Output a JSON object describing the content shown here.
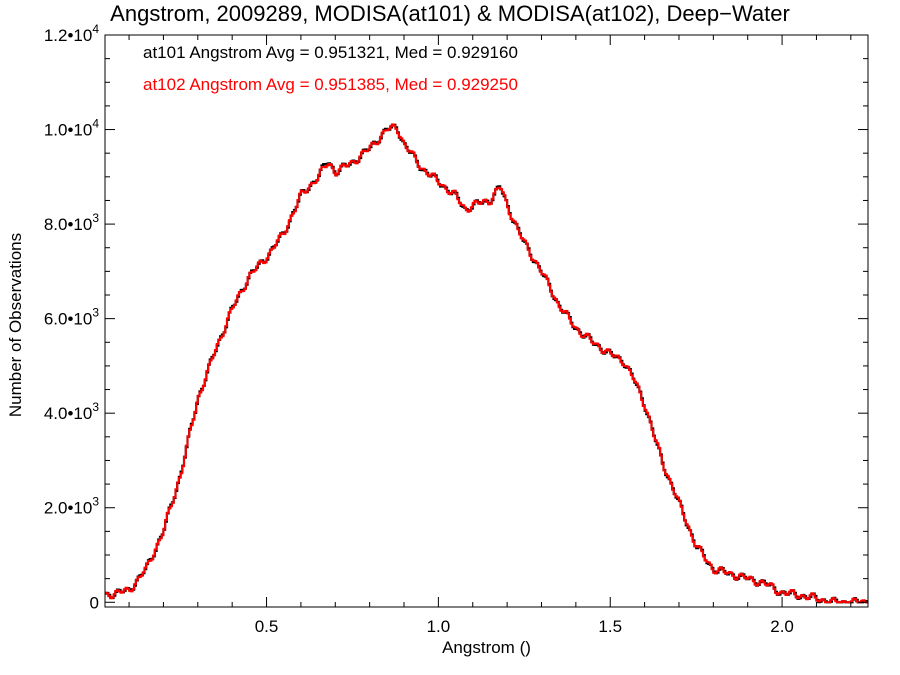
{
  "chart_data": {
    "type": "step-histogram",
    "title": "Angstrom, 2009289, MODISA(at101) & MODISA(at102), Deep−Water",
    "xlabel": "Angstrom ()",
    "ylabel": "Number of Observations",
    "xlim": [
      0.03,
      2.25
    ],
    "ylim": [
      -100,
      12000
    ],
    "x_ticks": [
      0.5,
      1.0,
      1.5,
      2.0
    ],
    "x_tick_labels": [
      "0.5",
      "1.0",
      "1.5",
      "2.0"
    ],
    "y_ticks": [
      0,
      2000,
      4000,
      6000,
      8000,
      10000,
      12000
    ],
    "y_tick_labels": [
      {
        "mant": "0",
        "exp": ""
      },
      {
        "mant": "2.0•10",
        "exp": "3"
      },
      {
        "mant": "4.0•10",
        "exp": "3"
      },
      {
        "mant": "6.0•10",
        "exp": "3"
      },
      {
        "mant": "8.0•10",
        "exp": "3"
      },
      {
        "mant": "1.0•10",
        "exp": "4"
      },
      {
        "mant": "1.2•10",
        "exp": "4"
      }
    ],
    "annotations": [
      {
        "text": "at101 Angstrom Avg = 0.951321, Med = 0.929160",
        "color": "#000000"
      },
      {
        "text": "at102 Angstrom Avg = 0.951385, Med = 0.929250",
        "color": "#ff0000"
      }
    ],
    "series": [
      {
        "name": "at101",
        "color": "#000000",
        "points": [
          [
            0.03,
            150
          ],
          [
            0.1,
            250
          ],
          [
            0.15,
            700
          ],
          [
            0.2,
            1500
          ],
          [
            0.25,
            2700
          ],
          [
            0.3,
            4300
          ],
          [
            0.35,
            5300
          ],
          [
            0.4,
            6200
          ],
          [
            0.45,
            6900
          ],
          [
            0.5,
            7300
          ],
          [
            0.55,
            7800
          ],
          [
            0.6,
            8600
          ],
          [
            0.65,
            9000
          ],
          [
            0.68,
            9350
          ],
          [
            0.7,
            9100
          ],
          [
            0.75,
            9300
          ],
          [
            0.8,
            9600
          ],
          [
            0.85,
            10000
          ],
          [
            0.88,
            10050
          ],
          [
            0.9,
            9700
          ],
          [
            0.95,
            9200
          ],
          [
            1.0,
            8900
          ],
          [
            1.05,
            8600
          ],
          [
            1.08,
            8300
          ],
          [
            1.1,
            8400
          ],
          [
            1.15,
            8500
          ],
          [
            1.18,
            8800
          ],
          [
            1.2,
            8400
          ],
          [
            1.25,
            7600
          ],
          [
            1.3,
            7000
          ],
          [
            1.35,
            6300
          ],
          [
            1.4,
            5800
          ],
          [
            1.45,
            5500
          ],
          [
            1.5,
            5250
          ],
          [
            1.54,
            5100
          ],
          [
            1.57,
            4700
          ],
          [
            1.6,
            4200
          ],
          [
            1.65,
            3000
          ],
          [
            1.7,
            2100
          ],
          [
            1.75,
            1200
          ],
          [
            1.8,
            700
          ],
          [
            1.85,
            600
          ],
          [
            1.9,
            500
          ],
          [
            1.95,
            400
          ],
          [
            2.0,
            200
          ],
          [
            2.05,
            150
          ],
          [
            2.1,
            80
          ],
          [
            2.15,
            0
          ],
          [
            2.25,
            0
          ]
        ]
      },
      {
        "name": "at102",
        "color": "#ff0000",
        "points": [
          [
            0.03,
            150
          ],
          [
            0.1,
            250
          ],
          [
            0.15,
            700
          ],
          [
            0.2,
            1500
          ],
          [
            0.25,
            2700
          ],
          [
            0.3,
            4300
          ],
          [
            0.35,
            5300
          ],
          [
            0.4,
            6200
          ],
          [
            0.45,
            6900
          ],
          [
            0.5,
            7300
          ],
          [
            0.55,
            7800
          ],
          [
            0.6,
            8600
          ],
          [
            0.65,
            9000
          ],
          [
            0.68,
            9300
          ],
          [
            0.7,
            9100
          ],
          [
            0.75,
            9300
          ],
          [
            0.8,
            9600
          ],
          [
            0.85,
            10000
          ],
          [
            0.88,
            10050
          ],
          [
            0.9,
            9700
          ],
          [
            0.95,
            9200
          ],
          [
            1.0,
            8900
          ],
          [
            1.05,
            8600
          ],
          [
            1.08,
            8300
          ],
          [
            1.1,
            8400
          ],
          [
            1.15,
            8500
          ],
          [
            1.18,
            8800
          ],
          [
            1.2,
            8400
          ],
          [
            1.25,
            7600
          ],
          [
            1.3,
            7000
          ],
          [
            1.35,
            6300
          ],
          [
            1.4,
            5800
          ],
          [
            1.45,
            5500
          ],
          [
            1.5,
            5250
          ],
          [
            1.54,
            5100
          ],
          [
            1.57,
            4700
          ],
          [
            1.6,
            4200
          ],
          [
            1.65,
            3000
          ],
          [
            1.7,
            2100
          ],
          [
            1.75,
            1200
          ],
          [
            1.8,
            700
          ],
          [
            1.85,
            600
          ],
          [
            1.9,
            500
          ],
          [
            1.95,
            400
          ],
          [
            2.0,
            200
          ],
          [
            2.05,
            150
          ],
          [
            2.1,
            80
          ],
          [
            2.15,
            0
          ],
          [
            2.25,
            0
          ]
        ]
      }
    ],
    "grid": false,
    "legend": "none"
  }
}
